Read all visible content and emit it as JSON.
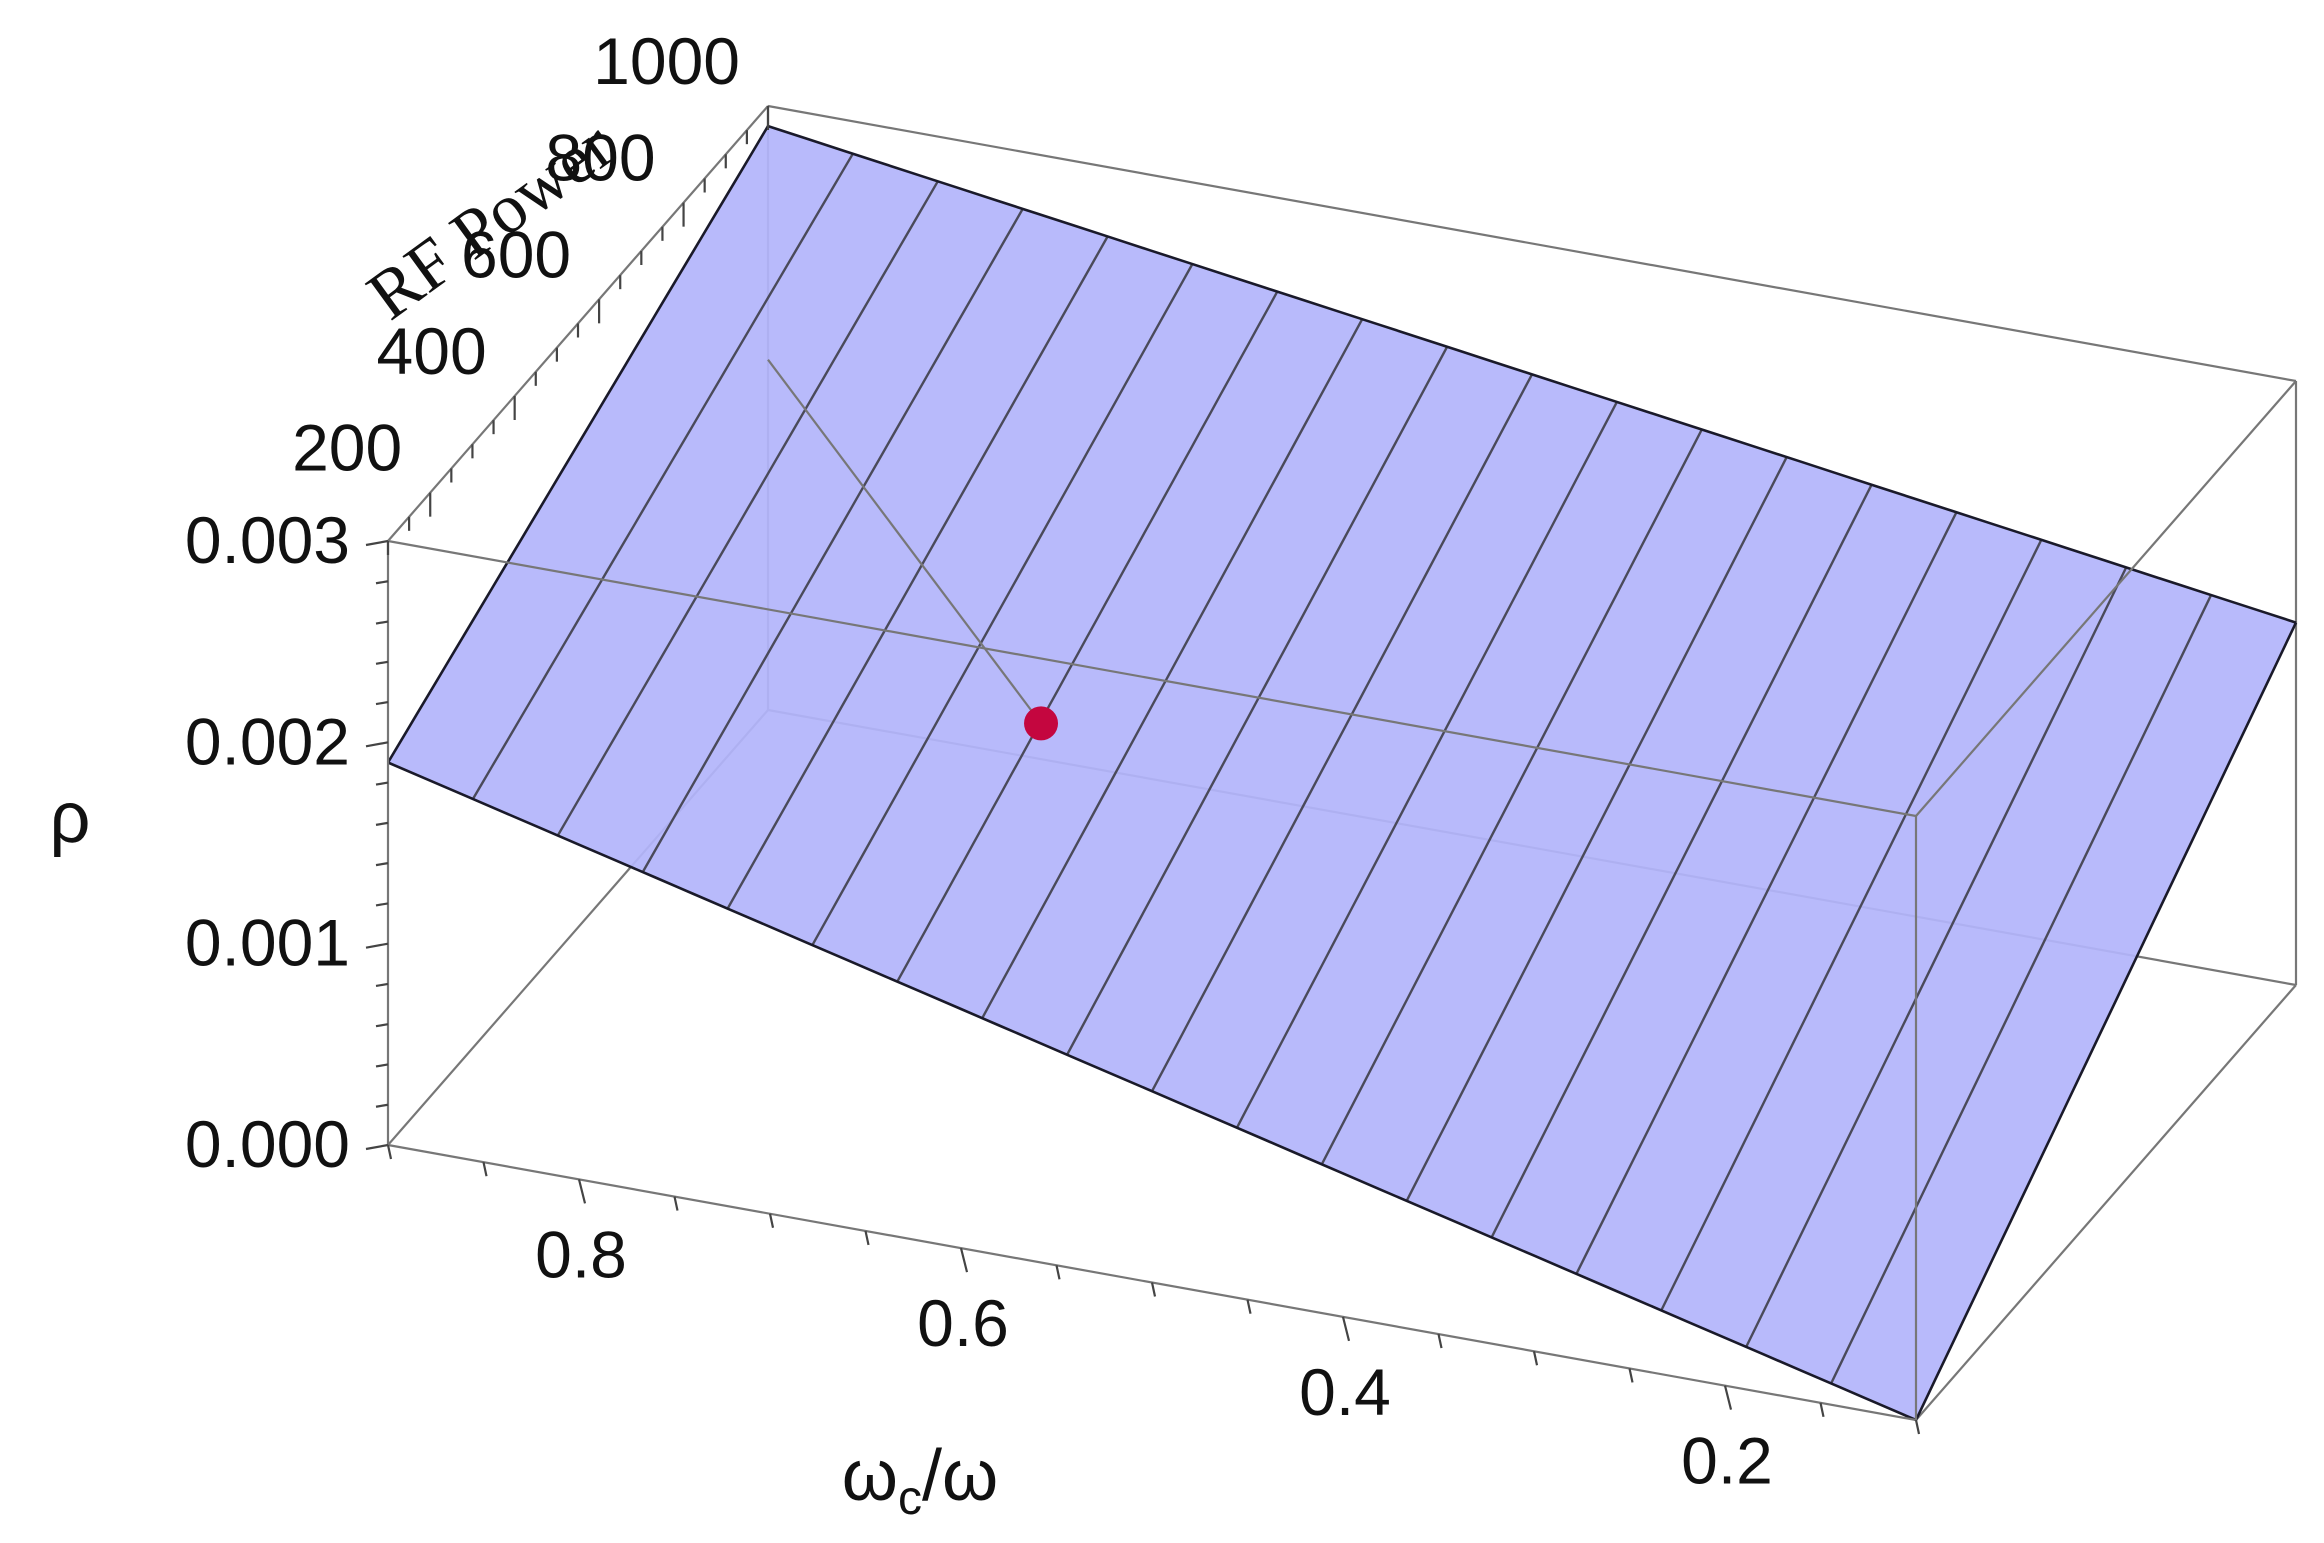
{
  "chart_data": {
    "type": "surface",
    "xlabel_main": "ω",
    "xlabel_sub": "c",
    "xlabel_tail": "/ω",
    "ylabel": "RF Power",
    "zlabel": "ρ",
    "x_ticks": [
      "0.8",
      "0.6",
      "0.4",
      "0.2"
    ],
    "x_tick_values": [
      0.8,
      0.6,
      0.4,
      0.2
    ],
    "x_range": [
      0.9,
      0.1
    ],
    "y_ticks": [
      "200",
      "400",
      "600",
      "800",
      "1000"
    ],
    "y_tick_values": [
      200,
      400,
      600,
      800,
      1000
    ],
    "y_range": [
      100,
      1000
    ],
    "z_ticks": [
      "0.000",
      "0.001",
      "0.002",
      "0.003"
    ],
    "z_tick_values": [
      0.0,
      0.001,
      0.002,
      0.003
    ],
    "z_range": [
      0.0,
      0.003
    ],
    "surface_corners": [
      {
        "x": 0.9,
        "y": 100,
        "z": 0.0019
      },
      {
        "x": 0.9,
        "y": 1000,
        "z": 0.0029
      },
      {
        "x": 0.1,
        "y": 1000,
        "z": 0.0018
      },
      {
        "x": 0.1,
        "y": 100,
        "z": 0.0
      }
    ],
    "surface_color": "#b3b5fb",
    "marker": {
      "x": 0.62,
      "y": 380,
      "z": 0.0019,
      "color": "#c4063f"
    },
    "contour_count": 17
  }
}
